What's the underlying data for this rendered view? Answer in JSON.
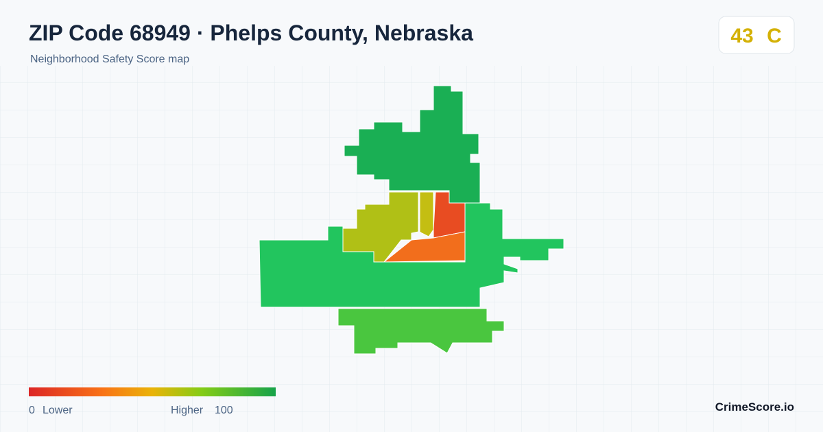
{
  "header": {
    "title": "ZIP Code 68949 · Phelps County, Nebraska",
    "subtitle": "Neighborhood Safety Score map"
  },
  "score": {
    "value": "43",
    "grade": "C"
  },
  "legend": {
    "min": "0",
    "min_label": "Lower",
    "max_label": "Higher",
    "max": "100"
  },
  "brand": "CrimeScore.io"
}
